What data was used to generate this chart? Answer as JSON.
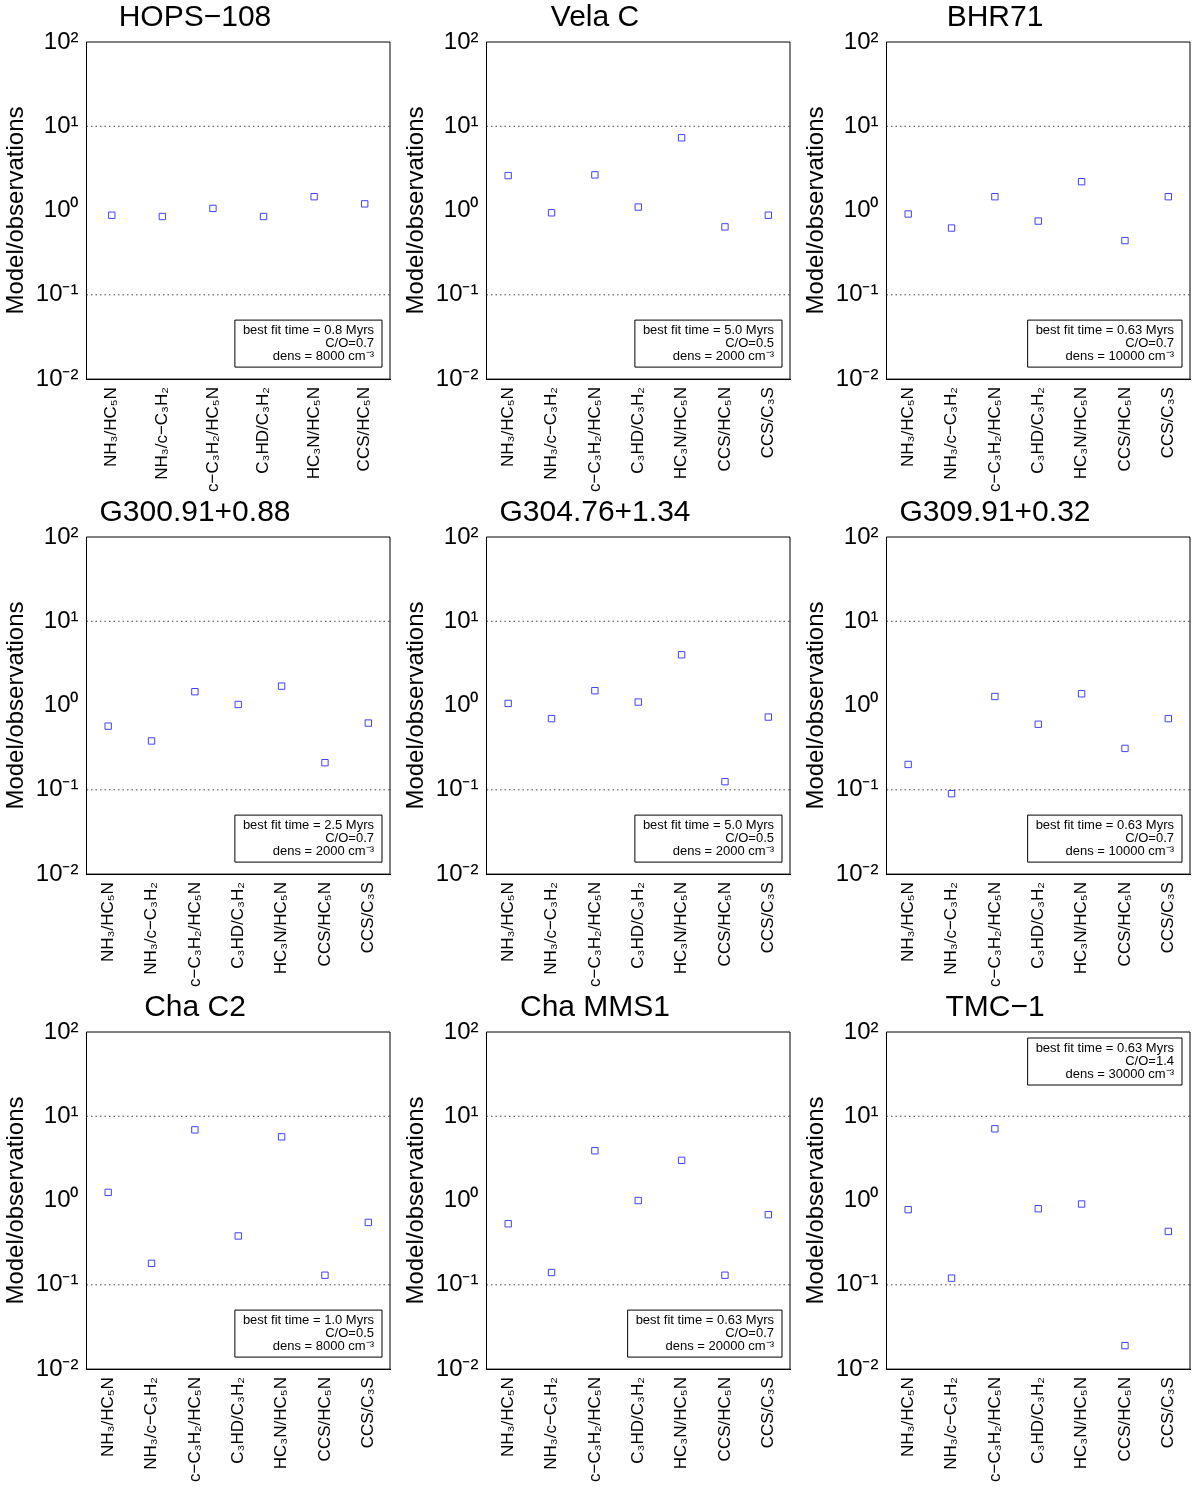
{
  "chart_data": [
    {
      "type": "scatter",
      "title": "HOPS−108",
      "ylabel": "Model/observations",
      "categories": [
        "NH₃/HC₅N",
        "NH₃/c−C₃H₂",
        "c−C₃H₂/HC₅N",
        "C₃HD/C₃H₂",
        "HC₃N/HC₅N",
        "CCS/HC₅N"
      ],
      "values": [
        0.88,
        0.85,
        1.06,
        0.85,
        1.46,
        1.2
      ],
      "color": "#4040ff",
      "marker": "square",
      "log": "y",
      "grid": false,
      "ylim": [
        0.01,
        100
      ],
      "yticks": [
        {
          "value": 0.01,
          "label": "10⁻²"
        },
        {
          "value": 0.1,
          "label": "10⁻¹"
        },
        {
          "value": 1,
          "label": "10⁰"
        },
        {
          "value": 10,
          "label": "10¹"
        },
        {
          "value": 100,
          "label": "10²"
        }
      ],
      "ref_lines": [
        {
          "axis": "y",
          "value": 10,
          "line_style": "dotted"
        },
        {
          "axis": "y",
          "value": 0.1,
          "line_style": "dotted"
        }
      ],
      "annotations": [
        "best fit time = 0.8 Myrs",
        "C/O=0.7",
        "dens = 8000 cm⁻³"
      ]
    },
    {
      "type": "scatter",
      "title": "Vela C",
      "ylabel": "Model/observations",
      "categories": [
        "NH₃/HC₅N",
        "NH₃/c−C₃H₂",
        "c−C₃H₂/HC₅N",
        "C₃HD/C₃H₂",
        "HC₃N/HC₅N",
        "CCS/HC₅N",
        "CCS/C₃S"
      ],
      "values": [
        2.6,
        0.94,
        2.65,
        1.1,
        7.3,
        0.64,
        0.88
      ],
      "color": "#4040ff",
      "marker": "square",
      "log": "y",
      "grid": false,
      "ylim": [
        0.01,
        100
      ],
      "yticks": [
        {
          "value": 0.01,
          "label": "10⁻²"
        },
        {
          "value": 0.1,
          "label": "10⁻¹"
        },
        {
          "value": 1,
          "label": "10⁰"
        },
        {
          "value": 10,
          "label": "10¹"
        },
        {
          "value": 100,
          "label": "10²"
        }
      ],
      "ref_lines": [
        {
          "axis": "y",
          "value": 10,
          "line_style": "dotted"
        },
        {
          "axis": "y",
          "value": 0.1,
          "line_style": "dotted"
        }
      ],
      "annotations": [
        "best fit time = 5.0 Myrs",
        "C/O=0.5",
        "dens = 2000 cm⁻³"
      ]
    },
    {
      "type": "scatter",
      "title": "BHR71",
      "ylabel": "Model/observations",
      "categories": [
        "NH₃/HC₅N",
        "NH₃/c−C₃H₂",
        "c−C₃H₂/HC₅N",
        "C₃HD/C₃H₂",
        "HC₃N/HC₅N",
        "CCS/HC₅N",
        "CCS/C₃S"
      ],
      "values": [
        0.91,
        0.62,
        1.46,
        0.75,
        2.2,
        0.44,
        1.46
      ],
      "color": "#4040ff",
      "marker": "square",
      "log": "y",
      "grid": false,
      "ylim": [
        0.01,
        100
      ],
      "yticks": [
        {
          "value": 0.01,
          "label": "10⁻²"
        },
        {
          "value": 0.1,
          "label": "10⁻¹"
        },
        {
          "value": 1,
          "label": "10⁰"
        },
        {
          "value": 10,
          "label": "10¹"
        },
        {
          "value": 100,
          "label": "10²"
        }
      ],
      "ref_lines": [
        {
          "axis": "y",
          "value": 10,
          "line_style": "dotted"
        },
        {
          "axis": "y",
          "value": 0.1,
          "line_style": "dotted"
        }
      ],
      "annotations": [
        "best fit time = 0.63 Myrs",
        "C/O=0.7",
        "dens = 10000 cm⁻³"
      ]
    },
    {
      "type": "scatter",
      "title": "G300.91+0.88",
      "ylabel": "Model/observations",
      "categories": [
        "NH₃/HC₅N",
        "NH₃/c−C₃H₂",
        "c−C₃H₂/HC₅N",
        "C₃HD/C₃H₂",
        "HC₃N/HC₅N",
        "CCS/HC₅N",
        "CCS/C₃S"
      ],
      "values": [
        0.57,
        0.38,
        1.46,
        1.03,
        1.7,
        0.21,
        0.62
      ],
      "color": "#4040ff",
      "marker": "square",
      "log": "y",
      "grid": false,
      "ylim": [
        0.01,
        100
      ],
      "yticks": [
        {
          "value": 0.01,
          "label": "10⁻²"
        },
        {
          "value": 0.1,
          "label": "10⁻¹"
        },
        {
          "value": 1,
          "label": "10⁰"
        },
        {
          "value": 10,
          "label": "10¹"
        },
        {
          "value": 100,
          "label": "10²"
        }
      ],
      "ref_lines": [
        {
          "axis": "y",
          "value": 10,
          "line_style": "dotted"
        },
        {
          "axis": "y",
          "value": 0.1,
          "line_style": "dotted"
        }
      ],
      "annotations": [
        "best fit time = 2.5 Myrs",
        "C/O=0.7",
        "dens = 2000 cm⁻³"
      ]
    },
    {
      "type": "scatter",
      "title": "G304.76+1.34",
      "ylabel": "Model/observations",
      "categories": [
        "NH₃/HC₅N",
        "NH₃/c−C₃H₂",
        "c−C₃H₂/HC₅N",
        "C₃HD/C₃H₂",
        "HC₃N/HC₅N",
        "CCS/HC₅N",
        "CCS/C₃S"
      ],
      "values": [
        1.06,
        0.7,
        1.5,
        1.1,
        4.0,
        0.125,
        0.73
      ],
      "color": "#4040ff",
      "marker": "square",
      "log": "y",
      "grid": false,
      "ylim": [
        0.01,
        100
      ],
      "yticks": [
        {
          "value": 0.01,
          "label": "10⁻²"
        },
        {
          "value": 0.1,
          "label": "10⁻¹"
        },
        {
          "value": 1,
          "label": "10⁰"
        },
        {
          "value": 10,
          "label": "10¹"
        },
        {
          "value": 100,
          "label": "10²"
        }
      ],
      "ref_lines": [
        {
          "axis": "y",
          "value": 10,
          "line_style": "dotted"
        },
        {
          "axis": "y",
          "value": 0.1,
          "line_style": "dotted"
        }
      ],
      "annotations": [
        "best fit time = 5.0 Myrs",
        "C/O=0.5",
        "dens = 2000 cm⁻³"
      ]
    },
    {
      "type": "scatter",
      "title": "G309.91+0.32",
      "ylabel": "Model/observations",
      "categories": [
        "NH₃/HC₅N",
        "NH₃/c−C₃H₂",
        "c−C₃H₂/HC₅N",
        "C₃HD/C₃H₂",
        "HC₃N/HC₅N",
        "CCS/HC₅N",
        "CCS/C₃S"
      ],
      "values": [
        0.2,
        0.09,
        1.28,
        0.6,
        1.38,
        0.31,
        0.7
      ],
      "color": "#4040ff",
      "marker": "square",
      "log": "y",
      "grid": false,
      "ylim": [
        0.01,
        100
      ],
      "yticks": [
        {
          "value": 0.01,
          "label": "10⁻²"
        },
        {
          "value": 0.1,
          "label": "10⁻¹"
        },
        {
          "value": 1,
          "label": "10⁰"
        },
        {
          "value": 10,
          "label": "10¹"
        },
        {
          "value": 100,
          "label": "10²"
        }
      ],
      "ref_lines": [
        {
          "axis": "y",
          "value": 10,
          "line_style": "dotted"
        },
        {
          "axis": "y",
          "value": 0.1,
          "line_style": "dotted"
        }
      ],
      "annotations": [
        "best fit time = 0.63 Myrs",
        "C/O=0.7",
        "dens = 10000 cm⁻³"
      ]
    },
    {
      "type": "scatter",
      "title": "Cha C2",
      "ylabel": "Model/observations",
      "categories": [
        "NH₃/HC₅N",
        "NH₃/c−C₃H₂",
        "c−C₃H₂/HC₅N",
        "C₃HD/C₃H₂",
        "HC₃N/HC₅N",
        "CCS/HC₅N",
        "CCS/C₃S"
      ],
      "values": [
        1.25,
        0.18,
        6.9,
        0.38,
        5.7,
        0.13,
        0.55
      ],
      "color": "#4040ff",
      "marker": "square",
      "log": "y",
      "grid": false,
      "ylim": [
        0.01,
        100
      ],
      "yticks": [
        {
          "value": 0.01,
          "label": "10⁻²"
        },
        {
          "value": 0.1,
          "label": "10⁻¹"
        },
        {
          "value": 1,
          "label": "10⁰"
        },
        {
          "value": 10,
          "label": "10¹"
        },
        {
          "value": 100,
          "label": "10²"
        }
      ],
      "ref_lines": [
        {
          "axis": "y",
          "value": 10,
          "line_style": "dotted"
        },
        {
          "axis": "y",
          "value": 0.1,
          "line_style": "dotted"
        }
      ],
      "annotations": [
        "best fit time = 1.0 Myrs",
        "C/O=0.5",
        "dens = 8000 cm⁻³"
      ]
    },
    {
      "type": "scatter",
      "title": "Cha MMS1",
      "ylabel": "Model/observations",
      "categories": [
        "NH₃/HC₅N",
        "NH₃/c−C₃H₂",
        "c−C₃H₂/HC₅N",
        "C₃HD/C₃H₂",
        "HC₃N/HC₅N",
        "CCS/HC₅N",
        "CCS/C₃S"
      ],
      "values": [
        0.53,
        0.14,
        3.9,
        1.0,
        3.0,
        0.13,
        0.68
      ],
      "color": "#4040ff",
      "marker": "square",
      "log": "y",
      "grid": false,
      "ylim": [
        0.01,
        100
      ],
      "yticks": [
        {
          "value": 0.01,
          "label": "10⁻²"
        },
        {
          "value": 0.1,
          "label": "10⁻¹"
        },
        {
          "value": 1,
          "label": "10⁰"
        },
        {
          "value": 10,
          "label": "10¹"
        },
        {
          "value": 100,
          "label": "10²"
        }
      ],
      "ref_lines": [
        {
          "axis": "y",
          "value": 10,
          "line_style": "dotted"
        },
        {
          "axis": "y",
          "value": 0.1,
          "line_style": "dotted"
        }
      ],
      "annotations": [
        "best fit time = 0.63 Myrs",
        "C/O=0.7",
        "dens = 20000 cm⁻³"
      ]
    },
    {
      "type": "scatter",
      "title": "TMC−1",
      "ylabel": "Model/observations",
      "categories": [
        "NH₃/HC₅N",
        "NH₃/c−C₃H₂",
        "c−C₃H₂/HC₅N",
        "C₃HD/C₃H₂",
        "HC₃N/HC₅N",
        "CCS/HC₅N",
        "CCS/C₃S"
      ],
      "values": [
        0.78,
        0.12,
        7.1,
        0.8,
        0.91,
        0.019,
        0.43
      ],
      "color": "#4040ff",
      "marker": "square",
      "log": "y",
      "grid": false,
      "ylim": [
        0.01,
        100
      ],
      "yticks": [
        {
          "value": 0.01,
          "label": "10⁻²"
        },
        {
          "value": 0.1,
          "label": "10⁻¹"
        },
        {
          "value": 1,
          "label": "10⁰"
        },
        {
          "value": 10,
          "label": "10¹"
        },
        {
          "value": 100,
          "label": "10²"
        }
      ],
      "ref_lines": [
        {
          "axis": "y",
          "value": 10,
          "line_style": "dotted"
        },
        {
          "axis": "y",
          "value": 0.1,
          "line_style": "dotted"
        }
      ],
      "annotations": [
        "best fit time = 0.63 Myrs",
        "C/O=1.4",
        "dens = 30000 cm⁻³"
      ]
    }
  ]
}
